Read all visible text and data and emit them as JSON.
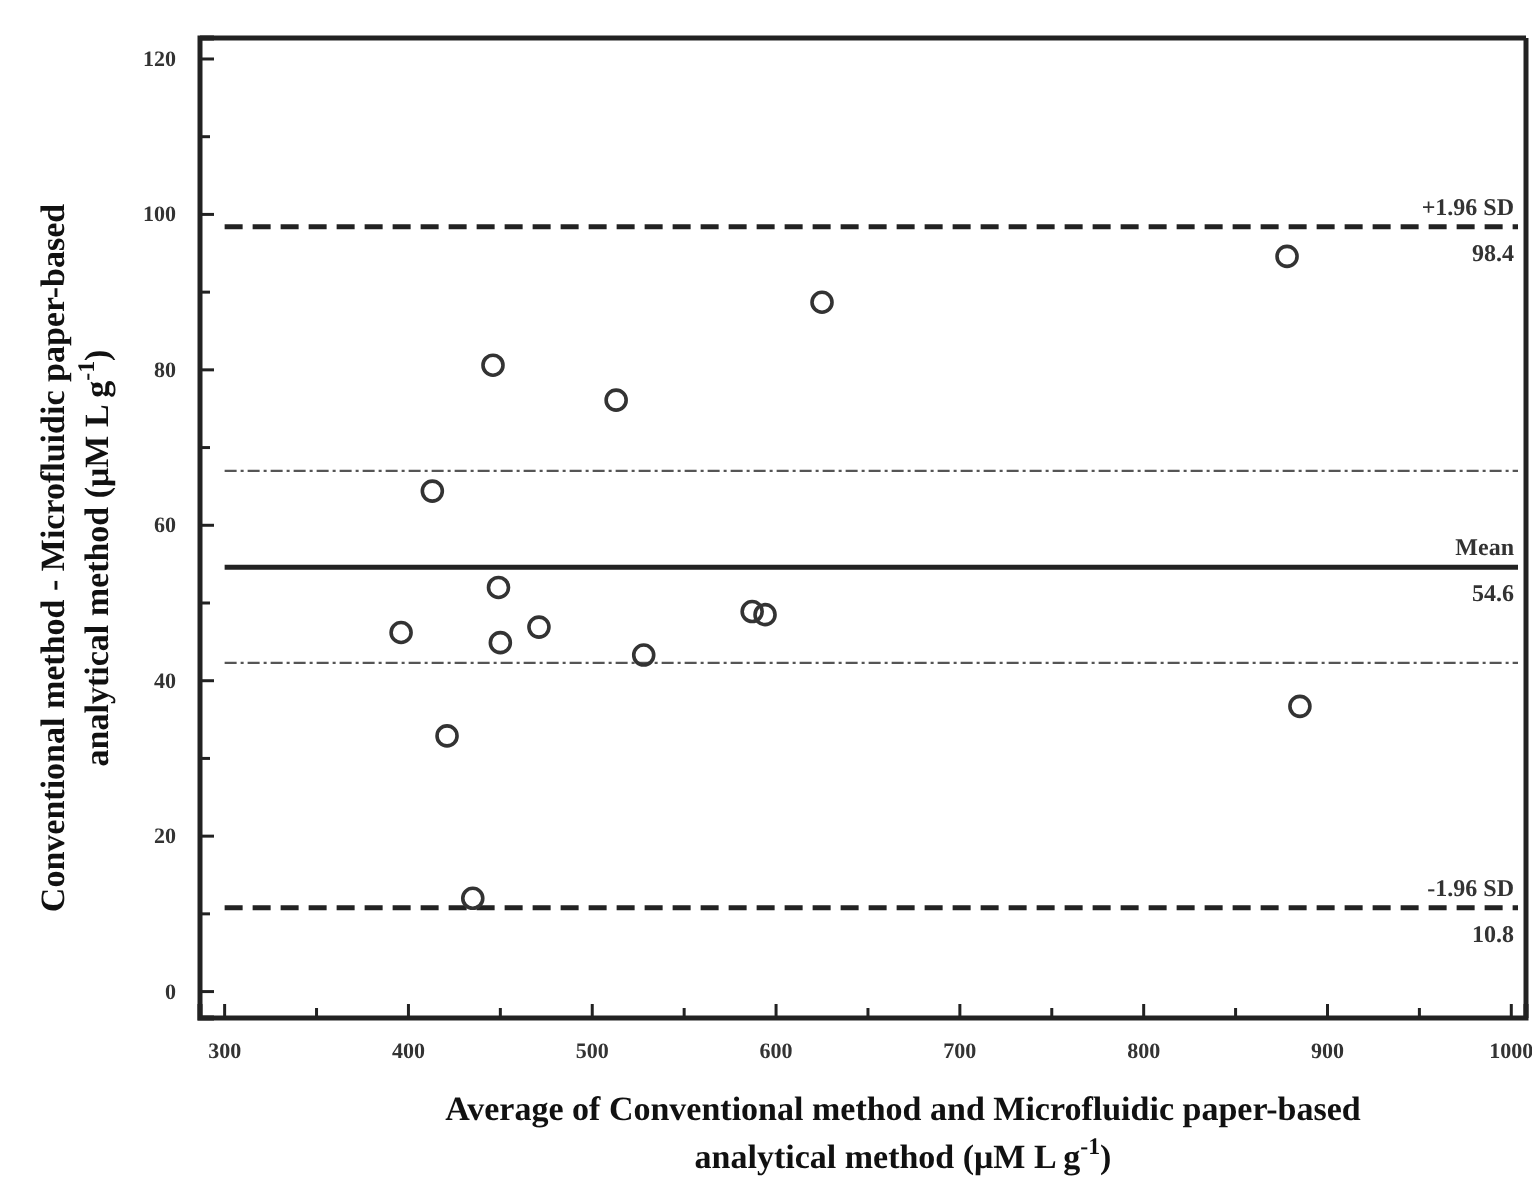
{
  "chart_data": {
    "type": "scatter",
    "xlabel": "Average of Conventional method and Microfluidic paper-based\nanalytical method (μM L g$^{-1}$)",
    "ylabel": "Conventional method - Microfluidic paper-based\nanalytical method (μM L g$^{-1}$)",
    "x": [
      878,
      625,
      446,
      513,
      413,
      449,
      396,
      450,
      471,
      528,
      587,
      594,
      421,
      435,
      885
    ],
    "values": [
      94.6,
      88.7,
      80.6,
      76.1,
      64.4,
      52.0,
      46.2,
      44.9,
      46.9,
      43.3,
      48.9,
      48.5,
      32.9,
      12.0,
      36.7
    ],
    "color": "#333333",
    "marker": "circle",
    "xlim": [
      286.6,
      1008
    ],
    "ylim": [
      -3.4,
      122.7
    ],
    "xticks": [
      300,
      {
        "value": 350,
        "label": null
      },
      400,
      {
        "value": 450,
        "label": null
      },
      500,
      {
        "value": 550,
        "label": null
      },
      600,
      {
        "value": 650,
        "label": null
      },
      700,
      {
        "value": 750,
        "label": null
      },
      800,
      {
        "value": 850,
        "label": null
      },
      900,
      {
        "value": 950,
        "label": null
      },
      1000
    ],
    "yticks": [
      0,
      {
        "value": 10,
        "label": null
      },
      20,
      {
        "value": 30,
        "label": null
      },
      40,
      {
        "value": 50,
        "label": null
      },
      60,
      {
        "value": 70,
        "label": null
      },
      80,
      {
        "value": 90,
        "label": null
      },
      100,
      {
        "value": 110,
        "label": null
      },
      120
    ],
    "grid": false,
    "ref_lines": [
      {
        "axis": "y",
        "value": 98.4,
        "label": "+1.96 SD",
        "line_style": "dashed",
        "color": "#222222"
      },
      {
        "axis": "y",
        "value": 54.6,
        "label": "Mean",
        "line_style": "solid",
        "color": "#222222"
      },
      {
        "axis": "y",
        "value": 10.8,
        "label": "-1.96 SD",
        "line_style": "dashed",
        "color": "#222222"
      },
      {
        "axis": "y",
        "value": 67.0,
        "line_style": "dotted",
        "color": "#555555"
      },
      {
        "axis": "y",
        "value": 42.3,
        "line_style": "dotted",
        "color": "#555555"
      }
    ],
    "annotations": [
      {
        "text": "98.4",
        "y": 98.4
      },
      {
        "text": "54.6",
        "y": 54.6
      },
      {
        "text": "10.8",
        "y": 10.8
      }
    ]
  }
}
